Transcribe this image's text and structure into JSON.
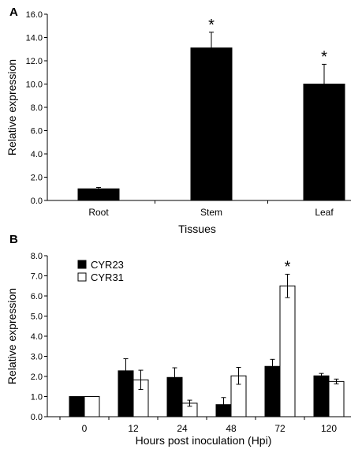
{
  "chart_data": [
    {
      "panel": "A",
      "type": "bar",
      "xlabel": "Tissues",
      "ylabel": "Relative expression",
      "ylim": [
        0,
        16
      ],
      "yticks": [
        "0.0",
        "2.0",
        "4.0",
        "6.0",
        "8.0",
        "10.0",
        "12.0",
        "14.0",
        "16.0"
      ],
      "categories": [
        "Root",
        "Stem",
        "Leaf"
      ],
      "series": [
        {
          "values": [
            1.0,
            13.1,
            10.0
          ],
          "errors": [
            0.12,
            1.35,
            1.7
          ],
          "significant": [
            false,
            true,
            true
          ],
          "color": "#000000"
        }
      ],
      "significance_marker": "*",
      "grid": false
    },
    {
      "panel": "B",
      "type": "bar",
      "xlabel": "Hours post inoculation (Hpi)",
      "ylabel": "Relative expression",
      "ylim": [
        0,
        8
      ],
      "yticks": [
        "0.0",
        "1.0",
        "2.0",
        "3.0",
        "4.0",
        "5.0",
        "6.0",
        "7.0",
        "8.0"
      ],
      "categories": [
        "0",
        "12",
        "24",
        "48",
        "72",
        "120"
      ],
      "series": [
        {
          "name": "CYR23",
          "values": [
            1.0,
            2.28,
            1.95,
            0.6,
            2.5,
            2.03
          ],
          "errors": [
            0,
            0.6,
            0.48,
            0.35,
            0.35,
            0.12
          ],
          "significant": [
            false,
            false,
            false,
            false,
            false,
            false
          ],
          "color": "#000000"
        },
        {
          "name": "CYR31",
          "values": [
            1.0,
            1.83,
            0.67,
            2.03,
            6.5,
            1.75
          ],
          "errors": [
            0,
            0.48,
            0.15,
            0.42,
            0.58,
            0.12
          ],
          "significant": [
            false,
            false,
            false,
            false,
            true,
            false
          ],
          "color": "#ffffff"
        }
      ],
      "significance_marker": "*",
      "legend_position": "top-left",
      "grid": false
    }
  ]
}
